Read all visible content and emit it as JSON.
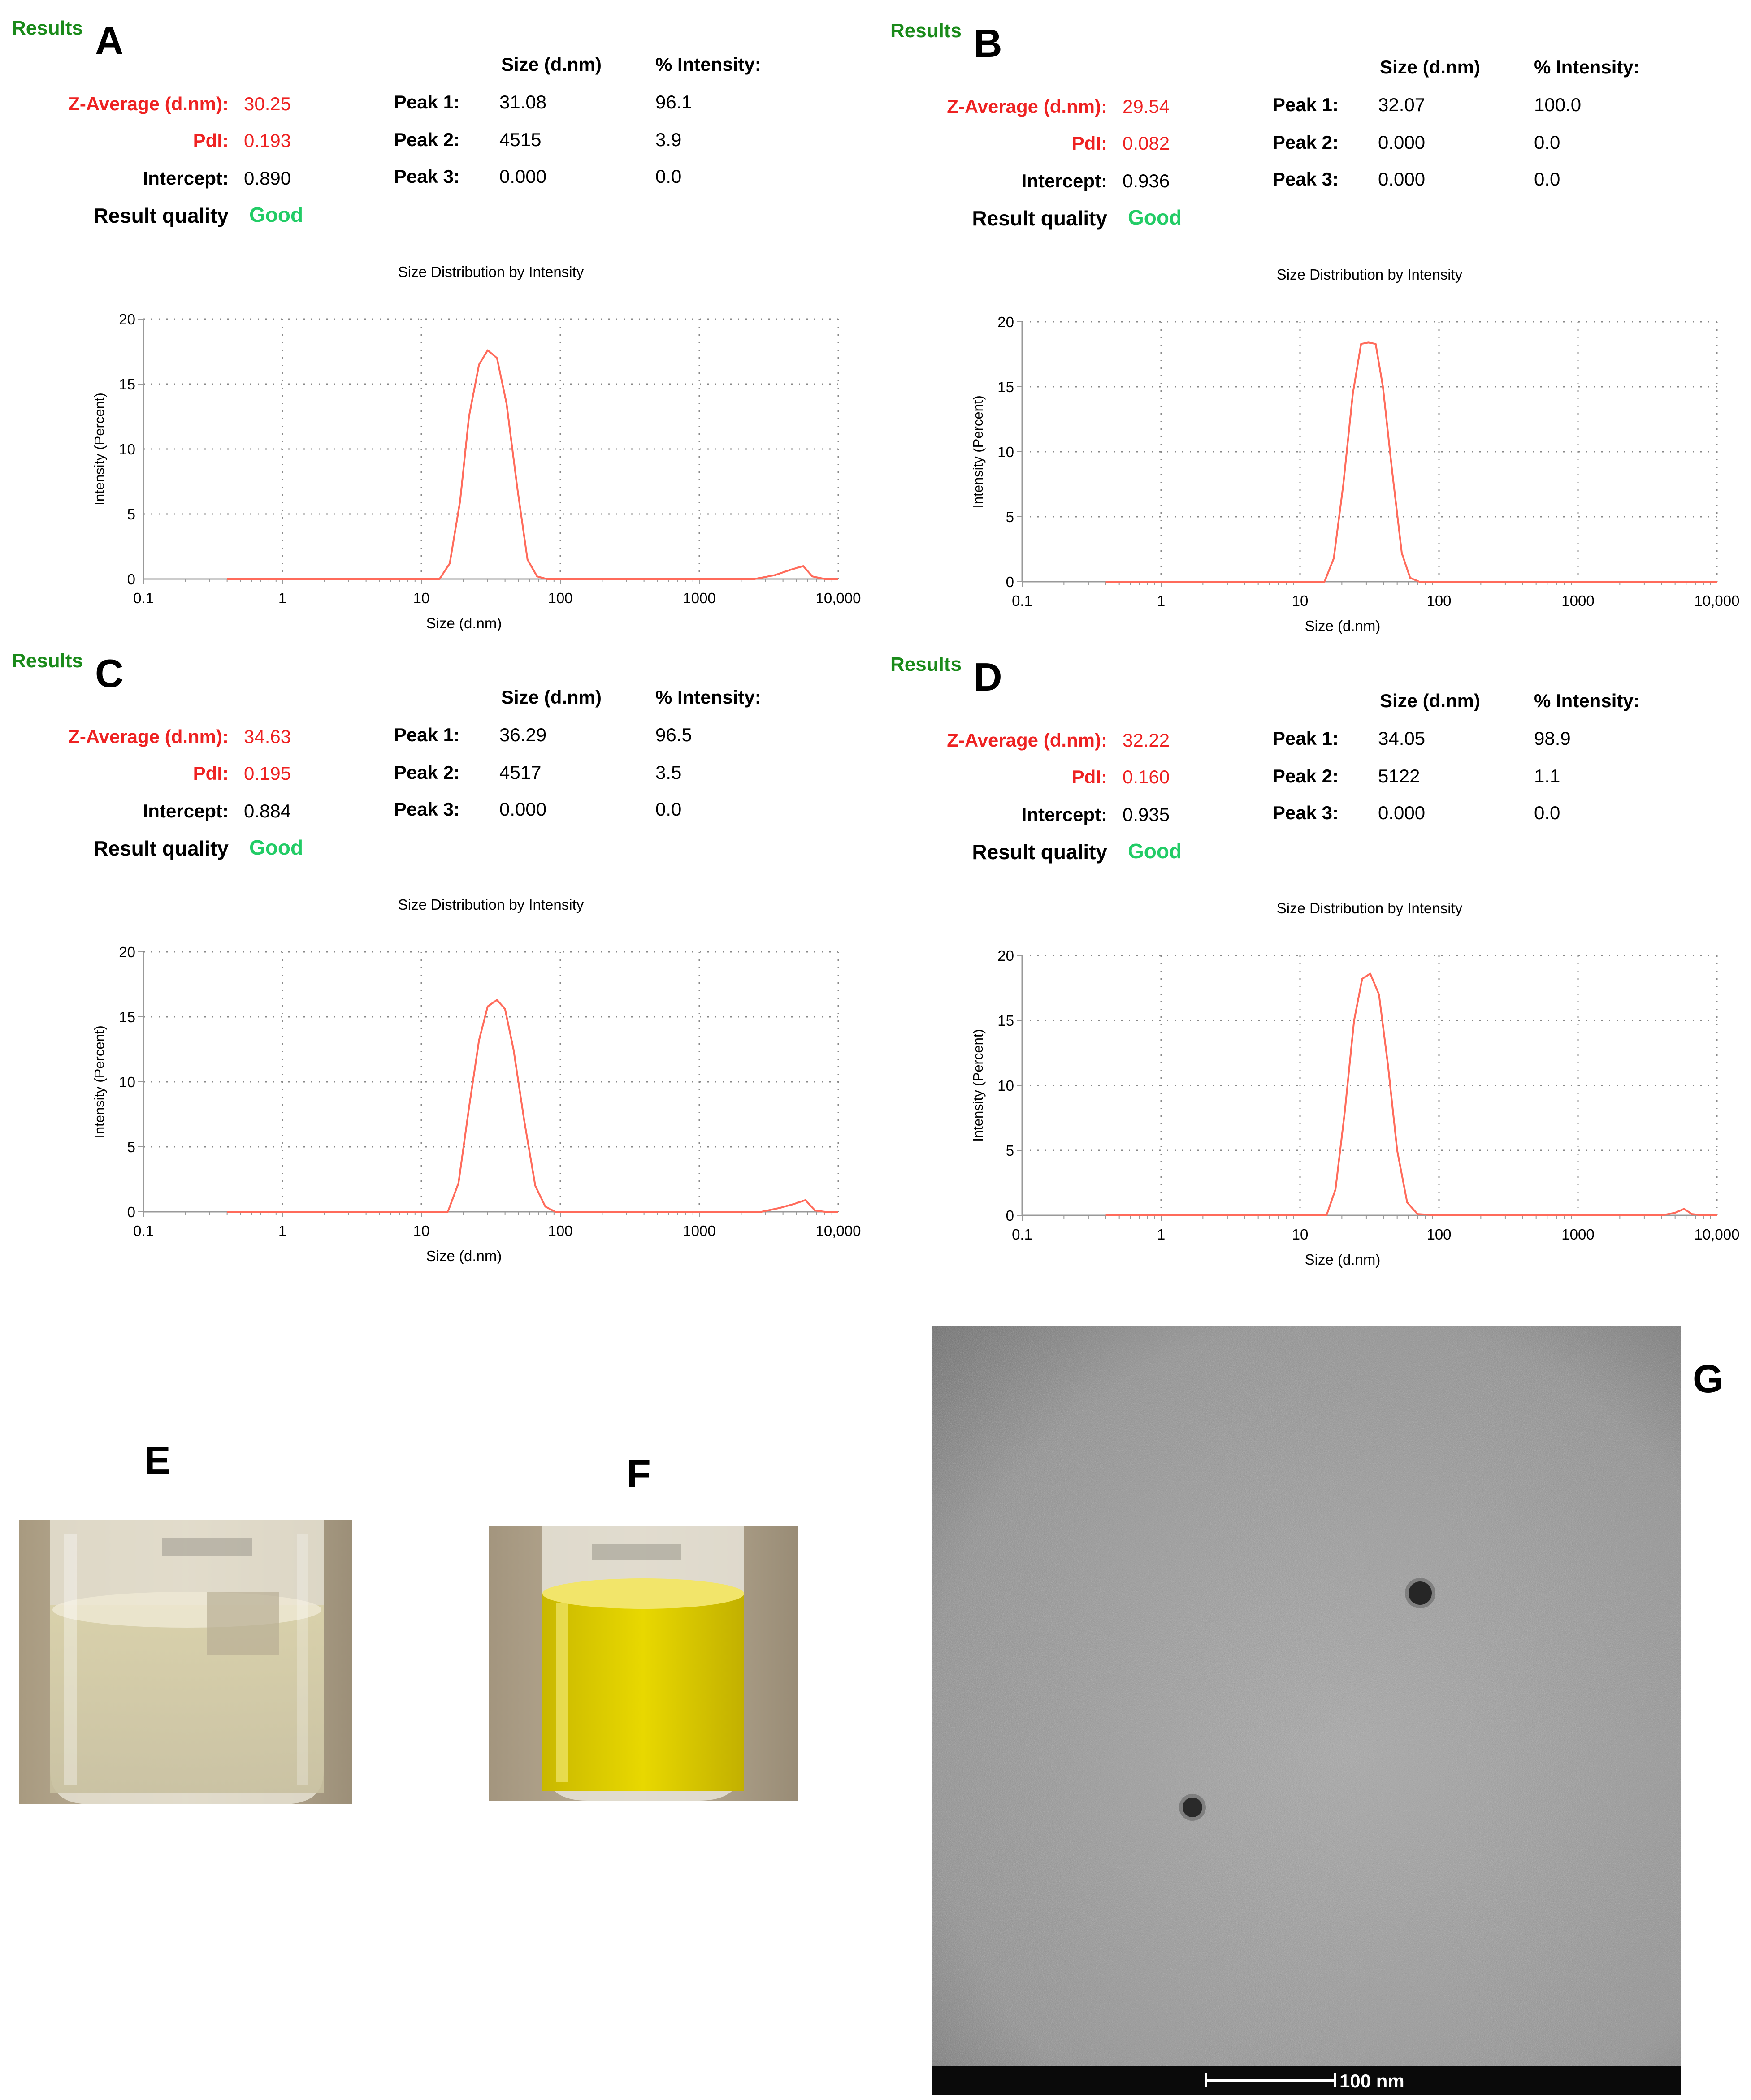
{
  "panels": {
    "A": {
      "results": "Results",
      "letter": "A",
      "z_average_label": "Z-Average (d.nm):",
      "z_average": "30.25",
      "pdi_label": "PdI:",
      "pdi": "0.193",
      "intercept_label": "Intercept:",
      "intercept": "0.890",
      "quality_label": "Result quality",
      "quality": "Good",
      "size_header": "Size (d.nm)",
      "intensity_header": "% Intensity:",
      "peaks": [
        {
          "label": "Peak 1:",
          "size": "31.08",
          "intensity": "96.1"
        },
        {
          "label": "Peak 2:",
          "size": "4515",
          "intensity": "3.9"
        },
        {
          "label": "Peak 3:",
          "size": "0.000",
          "intensity": "0.0"
        }
      ]
    },
    "B": {
      "results": "Results",
      "letter": "B",
      "z_average_label": "Z-Average (d.nm):",
      "z_average": "29.54",
      "pdi_label": "PdI:",
      "pdi": "0.082",
      "intercept_label": "Intercept:",
      "intercept": "0.936",
      "quality_label": "Result quality",
      "quality": "Good",
      "size_header": "Size (d.nm)",
      "intensity_header": "% Intensity:",
      "peaks": [
        {
          "label": "Peak 1:",
          "size": "32.07",
          "intensity": "100.0"
        },
        {
          "label": "Peak 2:",
          "size": "0.000",
          "intensity": "0.0"
        },
        {
          "label": "Peak 3:",
          "size": "0.000",
          "intensity": "0.0"
        }
      ]
    },
    "C": {
      "results": "Results",
      "letter": "C",
      "z_average_label": "Z-Average (d.nm):",
      "z_average": "34.63",
      "pdi_label": "PdI:",
      "pdi": "0.195",
      "intercept_label": "Intercept:",
      "intercept": "0.884",
      "quality_label": "Result quality",
      "quality": "Good",
      "size_header": "Size (d.nm)",
      "intensity_header": "% Intensity:",
      "peaks": [
        {
          "label": "Peak 1:",
          "size": "36.29",
          "intensity": "96.5"
        },
        {
          "label": "Peak 2:",
          "size": "4517",
          "intensity": "3.5"
        },
        {
          "label": "Peak 3:",
          "size": "0.000",
          "intensity": "0.0"
        }
      ]
    },
    "D": {
      "results": "Results",
      "letter": "D",
      "z_average_label": "Z-Average (d.nm):",
      "z_average": "32.22",
      "pdi_label": "PdI:",
      "pdi": "0.160",
      "intercept_label": "Intercept:",
      "intercept": "0.935",
      "quality_label": "Result quality",
      "quality": "Good",
      "size_header": "Size (d.nm)",
      "intensity_header": "% Intensity:",
      "peaks": [
        {
          "label": "Peak 1:",
          "size": "34.05",
          "intensity": "98.9"
        },
        {
          "label": "Peak 2:",
          "size": "5122",
          "intensity": "1.1"
        },
        {
          "label": "Peak 3:",
          "size": "0.000",
          "intensity": "0.0"
        }
      ]
    }
  },
  "chart_data": [
    {
      "panel": "A",
      "type": "line",
      "title": "Size Distribution by Intensity",
      "xlabel": "Size (d.nm)",
      "ylabel": "Intensity (Percent)",
      "xscale": "log",
      "xlim": [
        0.1,
        10000
      ],
      "ylim": [
        0,
        20
      ],
      "xticks": [
        0.1,
        1,
        10,
        100,
        1000,
        10000
      ],
      "xtick_labels": [
        "0.1",
        "1",
        "10",
        "100",
        "1000",
        "10,000"
      ],
      "yticks": [
        0,
        5,
        10,
        15,
        20
      ],
      "grid": true,
      "line_color": "#ff6b5b",
      "series": [
        {
          "x": [
            0.4,
            13.5,
            16,
            19,
            22,
            26,
            30,
            35,
            41,
            49,
            58,
            68,
            80,
            100,
            1000,
            2500,
            3500,
            4500,
            5600,
            6500,
            8000,
            10000
          ],
          "y": [
            0,
            0,
            1.2,
            6,
            12.5,
            16.5,
            17.6,
            17,
            13.5,
            7,
            1.5,
            0.2,
            0,
            0,
            0,
            0,
            0.3,
            0.7,
            1.0,
            0.2,
            0,
            0
          ]
        }
      ]
    },
    {
      "panel": "B",
      "type": "line",
      "title": "Size Distribution by Intensity",
      "xlabel": "Size (d.nm)",
      "ylabel": "Intensity (Percent)",
      "xscale": "log",
      "xlim": [
        0.1,
        10000
      ],
      "ylim": [
        0,
        20
      ],
      "xticks": [
        0.1,
        1,
        10,
        100,
        1000,
        10000
      ],
      "xtick_labels": [
        "0.1",
        "1",
        "10",
        "100",
        "1000",
        "10,000"
      ],
      "yticks": [
        0,
        5,
        10,
        15,
        20
      ],
      "grid": true,
      "line_color": "#ff6b5b",
      "series": [
        {
          "x": [
            0.4,
            15,
            17.5,
            20.5,
            24,
            27.5,
            31,
            35,
            39.5,
            46,
            54,
            62,
            72,
            100,
            10000
          ],
          "y": [
            0,
            0,
            1.8,
            7.5,
            14.5,
            18.3,
            18.4,
            18.3,
            15,
            8.5,
            2.2,
            0.3,
            0,
            0,
            0
          ]
        }
      ]
    },
    {
      "panel": "C",
      "type": "line",
      "title": "Size Distribution by Intensity",
      "xlabel": "Size (d.nm)",
      "ylabel": "Intensity (Percent)",
      "xscale": "log",
      "xlim": [
        0.1,
        10000
      ],
      "ylim": [
        0,
        20
      ],
      "xticks": [
        0.1,
        1,
        10,
        100,
        1000,
        10000
      ],
      "xtick_labels": [
        "0.1",
        "1",
        "10",
        "100",
        "1000",
        "10,000"
      ],
      "yticks": [
        0,
        5,
        10,
        15,
        20
      ],
      "grid": true,
      "line_color": "#ff6b5b",
      "series": [
        {
          "x": [
            0.4,
            15.5,
            18.5,
            22,
            26,
            30,
            35,
            40,
            46,
            55,
            66,
            78,
            92,
            100,
            1000,
            2800,
            3800,
            4800,
            5800,
            6800,
            8000,
            10000
          ],
          "y": [
            0,
            0,
            2.2,
            8,
            13.2,
            15.8,
            16.3,
            15.6,
            12.5,
            7,
            2,
            0.4,
            0,
            0,
            0,
            0,
            0.3,
            0.6,
            0.9,
            0.1,
            0,
            0
          ]
        }
      ]
    },
    {
      "panel": "D",
      "type": "line",
      "title": "Size Distribution by Intensity",
      "xlabel": "Size (d.nm)",
      "ylabel": "Intensity (Percent)",
      "xscale": "log",
      "xlim": [
        0.1,
        10000
      ],
      "ylim": [
        0,
        20
      ],
      "xticks": [
        0.1,
        1,
        10,
        100,
        1000,
        10000
      ],
      "xtick_labels": [
        "0.1",
        "1",
        "10",
        "100",
        "1000",
        "10,000"
      ],
      "yticks": [
        0,
        5,
        10,
        15,
        20
      ],
      "grid": true,
      "line_color": "#ff6b5b",
      "series": [
        {
          "x": [
            0.4,
            15.5,
            18,
            21,
            24.5,
            28,
            32,
            37,
            43,
            50,
            59,
            70,
            100,
            1000,
            4000,
            5000,
            5800,
            6600,
            8000,
            10000
          ],
          "y": [
            0,
            0,
            2,
            8,
            15,
            18.2,
            18.6,
            17,
            11.5,
            5,
            1,
            0.1,
            0,
            0,
            0,
            0.2,
            0.5,
            0.1,
            0,
            0
          ]
        }
      ]
    }
  ],
  "photos": {
    "E": {
      "letter": "E"
    },
    "F": {
      "letter": "F"
    },
    "G": {
      "letter": "G",
      "scale_bar_label": "100 nm"
    }
  },
  "colors": {
    "results_green": "#1a8a1a",
    "highlight_red": "#ee2222",
    "good_green": "#22cc66",
    "curve_red": "#ff6b5b"
  }
}
